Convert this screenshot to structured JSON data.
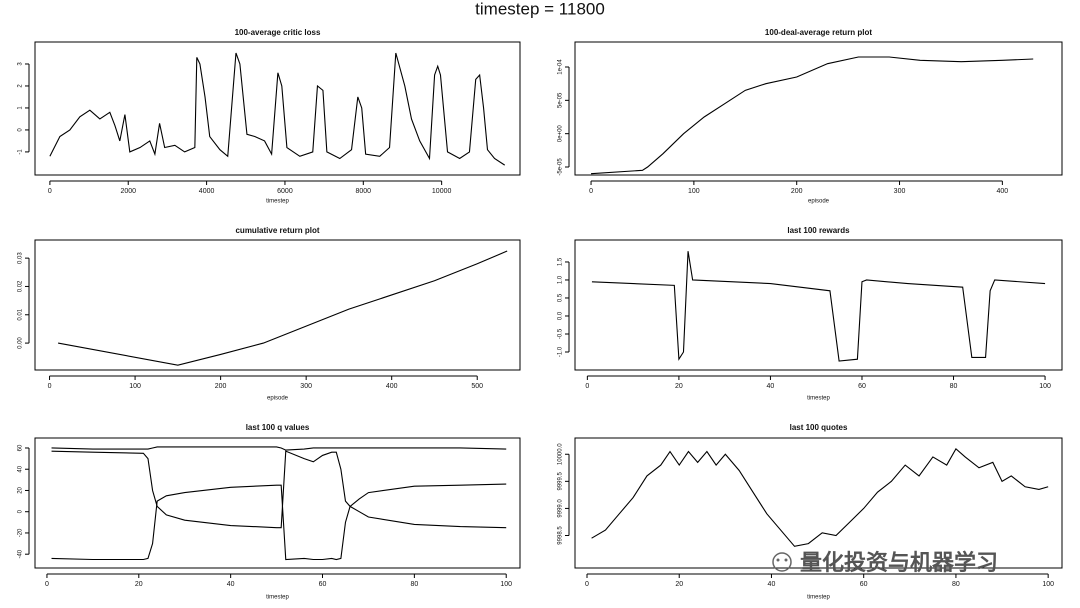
{
  "title": "timestep = 11800",
  "watermark": "量化投资与机器学习",
  "chart_data": [
    {
      "type": "line",
      "title": "100-average critic loss",
      "xlabel": "timestep",
      "color": "#000000",
      "xlim": [
        -380,
        12000
      ],
      "xticks": [
        0,
        2000,
        4000,
        6000,
        8000,
        10000
      ],
      "ylim": [
        -2.05,
        4.0
      ],
      "yticks": [
        -1,
        0,
        1,
        2,
        3
      ],
      "x": [
        0,
        255,
        510,
        765,
        1020,
        1275,
        1530,
        1660,
        1785,
        1915,
        2040,
        2300,
        2550,
        2680,
        2800,
        2930,
        3190,
        3440,
        3700,
        3750,
        3830,
        3960,
        4080,
        4340,
        4540,
        4750,
        4850,
        5030,
        5230,
        5480,
        5660,
        5820,
        5920,
        6050,
        6380,
        6710,
        6830,
        6970,
        7070,
        7400,
        7700,
        7860,
        7960,
        8060,
        8420,
        8670,
        8830,
        9060,
        9230,
        9440,
        9690,
        9820,
        9900,
        9970,
        10150,
        10460,
        10710,
        10870,
        10970,
        11070,
        11170,
        11350,
        11610
      ],
      "values": [
        -1.2,
        -0.3,
        0,
        0.6,
        0.9,
        0.5,
        0.8,
        0.2,
        -0.5,
        0.7,
        -1.0,
        -0.8,
        -0.5,
        -1.1,
        0.3,
        -0.8,
        -0.7,
        -1.0,
        -0.8,
        3.3,
        3.0,
        1.5,
        -0.3,
        -0.9,
        -1.2,
        3.5,
        3.0,
        -0.2,
        -0.3,
        -0.5,
        -1.1,
        2.6,
        2.0,
        -0.8,
        -1.2,
        -1.0,
        2.0,
        1.8,
        -1.0,
        -1.3,
        -0.9,
        1.5,
        1.0,
        -1.1,
        -1.2,
        -0.8,
        3.5,
        2.0,
        0.5,
        -0.5,
        -1.3,
        2.5,
        2.9,
        2.5,
        -1.0,
        -1.3,
        -1.0,
        2.3,
        2.5,
        1.0,
        -0.9,
        -1.3,
        -1.6
      ]
    },
    {
      "type": "line",
      "title": "100-deal-average return plot",
      "xlabel": "episode",
      "color": "#000000",
      "xlim": [
        -15.6,
        458
      ],
      "xticks": [
        0,
        100,
        200,
        300,
        400
      ],
      "ylim": [
        -6.2e-05,
        0.0001375
      ],
      "yticks": [
        {
          "value": -5e-05,
          "label": "-5e-05"
        },
        {
          "value": 0,
          "label": "0e+00"
        },
        {
          "value": 5e-05,
          "label": "5e-05"
        },
        {
          "value": 0.0001,
          "label": "1e-04"
        }
      ],
      "x": [
        0,
        50,
        55,
        70,
        90,
        110,
        130,
        150,
        170,
        200,
        230,
        260,
        290,
        320,
        360,
        400,
        430
      ],
      "values": [
        -6e-05,
        -5.5e-05,
        -5e-05,
        -3e-05,
        0,
        2.5e-05,
        4.5e-05,
        6.5e-05,
        7.5e-05,
        8.5e-05,
        0.000105,
        0.000115,
        0.000115,
        0.00011,
        0.000108,
        0.00011,
        0.000112
      ]
    },
    {
      "type": "line",
      "title": "cumulative return plot",
      "xlabel": "episode",
      "color": "#000000",
      "xlim": [
        -17,
        550
      ],
      "xticks": [
        0,
        100,
        200,
        300,
        400,
        500
      ],
      "ylim": [
        -0.0095,
        0.0364
      ],
      "yticks": [
        {
          "value": 0,
          "label": "0.00"
        },
        {
          "value": 0.01,
          "label": "0.01"
        },
        {
          "value": 0.02,
          "label": "0.02"
        },
        {
          "value": 0.03,
          "label": "0.03"
        }
      ],
      "x": [
        10,
        150,
        200,
        250,
        300,
        350,
        400,
        450,
        500,
        535
      ],
      "values": [
        0.0,
        -0.0078,
        -0.004,
        0.0,
        0.006,
        0.012,
        0.017,
        0.022,
        0.028,
        0.0325
      ]
    },
    {
      "type": "line",
      "title": "last 100 rewards",
      "xlabel": "timestep",
      "color": "#000000",
      "xlim": [
        -2.7,
        103.7
      ],
      "xticks": [
        0,
        20,
        40,
        60,
        80,
        100
      ],
      "ylim": [
        -1.5,
        2.11
      ],
      "yticks": [
        {
          "value": -1,
          "label": "-1.0"
        },
        -0.5,
        {
          "value": 0,
          "label": "0.0"
        },
        0.5,
        {
          "value": 1,
          "label": "1.0"
        },
        1.5
      ],
      "x": [
        1,
        10,
        19,
        20,
        21,
        22,
        23,
        40,
        53,
        55,
        59,
        60,
        61,
        70,
        82,
        84,
        87,
        88,
        89,
        100
      ],
      "values": [
        0.95,
        0.9,
        0.85,
        -1.2,
        -1.0,
        1.8,
        1.0,
        0.9,
        0.7,
        -1.25,
        -1.2,
        0.95,
        1.0,
        0.9,
        0.8,
        -1.15,
        -1.15,
        0.7,
        1.0,
        0.9
      ]
    },
    {
      "type": "line",
      "title": "last 100 q values",
      "xlabel": "timestep",
      "color": "#000000",
      "xlim": [
        -2.6,
        103
      ],
      "xticks": [
        0,
        20,
        40,
        60,
        80,
        100
      ],
      "ylim": [
        -53,
        69.4
      ],
      "yticks": [
        -40,
        -20,
        0,
        20,
        40,
        60
      ],
      "x": [
        1,
        10,
        21,
        22,
        23,
        24,
        26,
        30,
        40,
        50,
        51,
        52,
        56,
        58,
        60,
        62,
        63,
        64,
        65,
        66,
        68,
        70,
        80,
        90,
        100
      ],
      "series": [
        {
          "values": [
            60,
            59,
            59,
            59,
            60,
            61,
            61,
            61,
            61,
            61,
            60,
            58,
            59,
            60,
            60,
            60,
            60,
            60,
            60,
            60,
            60,
            60,
            60,
            60,
            59
          ]
        },
        {
          "values": [
            57,
            56,
            55,
            50,
            20,
            5,
            -3,
            -8,
            -13,
            -15,
            -15,
            57,
            50,
            47,
            53,
            56,
            56,
            40,
            10,
            5,
            0,
            -5,
            -12,
            -14,
            -15
          ]
        },
        {
          "values": [
            -44,
            -45,
            -45,
            -44,
            -30,
            10,
            15,
            18,
            23,
            25,
            25,
            -45,
            -44,
            -45,
            -45,
            -44,
            -45,
            -44,
            -10,
            5,
            12,
            18,
            24,
            25,
            26
          ]
        }
      ]
    },
    {
      "type": "line",
      "title": "last 100 quotes",
      "xlabel": "timestep",
      "color": "#000000",
      "xlim": [
        -2.6,
        103
      ],
      "xticks": [
        0,
        20,
        40,
        60,
        80,
        100
      ],
      "ylim": [
        9997.9,
        10000.3
      ],
      "yticks": [
        9998.5,
        {
          "value": 9999,
          "label": "9999.0"
        },
        9999.5,
        {
          "value": 10000,
          "label": "10000.0"
        }
      ],
      "x": [
        1,
        4,
        7,
        10,
        13,
        16,
        18,
        20,
        22,
        24,
        26,
        28,
        30,
        33,
        36,
        39,
        42,
        45,
        48,
        51,
        54,
        57,
        60,
        63,
        66,
        69,
        72,
        75,
        78,
        80,
        82,
        85,
        88,
        90,
        92,
        95,
        98,
        100
      ],
      "values": [
        9998.45,
        9998.6,
        9998.9,
        9999.2,
        9999.6,
        9999.8,
        10000.05,
        9999.8,
        10000.05,
        9999.85,
        10000.05,
        9999.8,
        10000.0,
        9999.7,
        9999.3,
        9998.9,
        9998.6,
        9998.3,
        9998.35,
        9998.55,
        9998.5,
        9998.75,
        9999.0,
        9999.3,
        9999.5,
        9999.8,
        9999.6,
        9999.95,
        9999.8,
        10000.1,
        9999.95,
        9999.75,
        9999.85,
        9999.5,
        9999.6,
        9999.4,
        9999.35,
        9999.4
      ]
    }
  ]
}
